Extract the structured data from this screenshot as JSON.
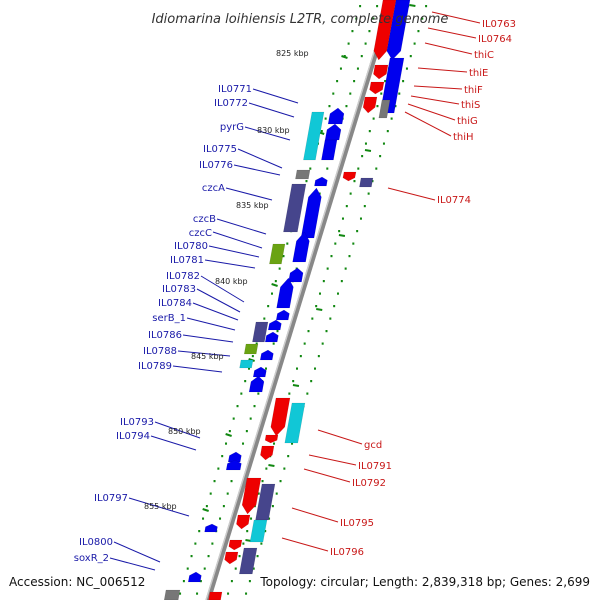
{
  "title": "Idiomarina loihiensis L2TR, complete genome",
  "footer": {
    "accession": "Accession: NC_006512",
    "summary": "Topology: circular; Length: 2,839,318 bp; Genes: 2,699"
  },
  "colors": {
    "forward_gene": "#0000ee",
    "reverse_gene": "#ee0000",
    "cyan_gene": "#11c7d6",
    "slate_gene": "#46458c",
    "green_gene": "#6aa313",
    "grey_gene": "#777777",
    "tick_green": "#118811",
    "label_left": "#1a1aa8",
    "label_right": "#c81818",
    "backbone": "#888888"
  },
  "kbp_marks": [
    "825 kbp",
    "830 kbp",
    "835 kbp",
    "840 kbp",
    "845 kbp",
    "850 kbp",
    "855 kbp"
  ],
  "left_labels": [
    "IL0771",
    "IL0772",
    "pyrG",
    "IL0775",
    "IL0776",
    "czcA",
    "czcB",
    "czcC",
    "IL0780",
    "IL0781",
    "IL0782",
    "IL0783",
    "IL0784",
    "serB_1",
    "IL0786",
    "IL0788",
    "IL0789",
    "IL0793",
    "IL0794",
    "IL0797",
    "IL0800",
    "soxR_2"
  ],
  "right_labels": [
    "IL0763",
    "IL0764",
    "thiC",
    "thiE",
    "thiF",
    "thiS",
    "thiG",
    "thiH",
    "IL0774",
    "gcd",
    "IL0791",
    "IL0792",
    "IL0795",
    "IL0796"
  ]
}
